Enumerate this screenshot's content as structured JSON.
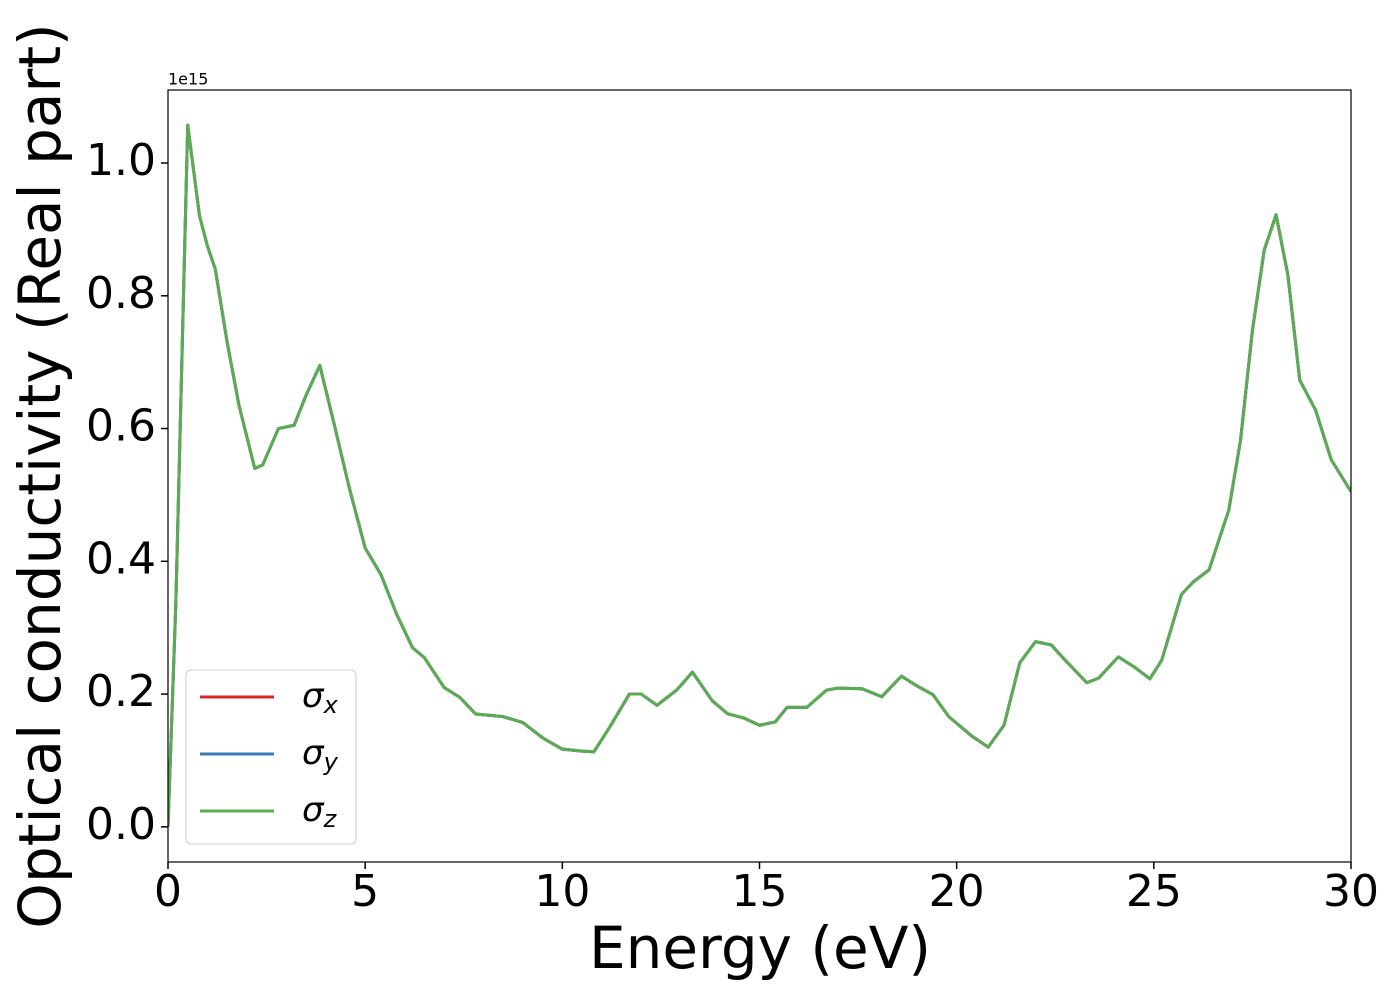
{
  "chart_data": {
    "type": "line",
    "xlabel": "Energy (eV)",
    "ylabel": "Optical conductivity (Real part)",
    "y_offset_text": "1e15",
    "x": [
      0,
      0.2,
      0.5,
      0.8,
      1.0,
      1.2,
      1.5,
      1.8,
      2.2,
      2.4,
      2.8,
      3.2,
      3.5,
      3.85,
      4.2,
      4.6,
      5.0,
      5.4,
      5.8,
      6.2,
      6.5,
      7.0,
      7.4,
      7.8,
      8.5,
      9.0,
      9.5,
      10.0,
      10.5,
      10.8,
      11.2,
      11.7,
      12.0,
      12.4,
      12.9,
      13.3,
      13.8,
      14.2,
      14.6,
      15.0,
      15.4,
      15.7,
      16.2,
      16.7,
      17.0,
      17.6,
      18.1,
      18.6,
      19.0,
      19.4,
      19.8,
      20.4,
      20.8,
      21.2,
      21.6,
      22.0,
      22.4,
      22.8,
      23.3,
      23.6,
      24.1,
      24.5,
      24.9,
      25.2,
      25.7,
      26.0,
      26.4,
      26.9,
      27.2,
      27.5,
      27.8,
      28.1,
      28.4,
      28.7,
      29.1,
      29.5,
      30.0
    ],
    "series": [
      {
        "name": "σx",
        "color": "#d62728",
        "values": [
          0,
          0.34,
          1.057,
          0.92,
          0.875,
          0.84,
          0.73,
          0.635,
          0.54,
          0.545,
          0.6,
          0.605,
          0.65,
          0.695,
          0.61,
          0.51,
          0.42,
          0.38,
          0.32,
          0.27,
          0.255,
          0.21,
          0.195,
          0.17,
          0.166,
          0.157,
          0.134,
          0.117,
          0.114,
          0.113,
          0.15,
          0.2,
          0.2,
          0.183,
          0.206,
          0.233,
          0.19,
          0.17,
          0.164,
          0.153,
          0.158,
          0.18,
          0.18,
          0.206,
          0.209,
          0.208,
          0.196,
          0.227,
          0.212,
          0.199,
          0.166,
          0.136,
          0.12,
          0.153,
          0.247,
          0.279,
          0.274,
          0.248,
          0.217,
          0.224,
          0.256,
          0.241,
          0.223,
          0.251,
          0.35,
          0.369,
          0.387,
          0.477,
          0.583,
          0.748,
          0.869,
          0.922,
          0.831,
          0.673,
          0.628,
          0.553,
          0.505
        ]
      },
      {
        "name": "σy",
        "color": "#3a7bb5",
        "values": [
          0,
          0.34,
          1.057,
          0.92,
          0.875,
          0.84,
          0.73,
          0.635,
          0.54,
          0.545,
          0.6,
          0.605,
          0.65,
          0.695,
          0.61,
          0.51,
          0.42,
          0.38,
          0.32,
          0.27,
          0.255,
          0.21,
          0.195,
          0.17,
          0.166,
          0.157,
          0.134,
          0.117,
          0.114,
          0.113,
          0.15,
          0.2,
          0.2,
          0.183,
          0.206,
          0.233,
          0.19,
          0.17,
          0.164,
          0.153,
          0.158,
          0.18,
          0.18,
          0.206,
          0.209,
          0.208,
          0.196,
          0.227,
          0.212,
          0.199,
          0.166,
          0.136,
          0.12,
          0.153,
          0.247,
          0.279,
          0.274,
          0.248,
          0.217,
          0.224,
          0.256,
          0.241,
          0.223,
          0.251,
          0.35,
          0.369,
          0.387,
          0.477,
          0.583,
          0.748,
          0.869,
          0.922,
          0.831,
          0.673,
          0.628,
          0.553,
          0.505
        ]
      },
      {
        "name": "σz",
        "color": "#5aac52",
        "values": [
          0,
          0.34,
          1.057,
          0.92,
          0.875,
          0.84,
          0.73,
          0.635,
          0.54,
          0.545,
          0.6,
          0.605,
          0.65,
          0.695,
          0.61,
          0.51,
          0.42,
          0.38,
          0.32,
          0.27,
          0.255,
          0.21,
          0.195,
          0.17,
          0.166,
          0.157,
          0.134,
          0.117,
          0.114,
          0.113,
          0.15,
          0.2,
          0.2,
          0.183,
          0.206,
          0.233,
          0.19,
          0.17,
          0.164,
          0.153,
          0.158,
          0.18,
          0.18,
          0.206,
          0.209,
          0.208,
          0.196,
          0.227,
          0.212,
          0.199,
          0.166,
          0.136,
          0.12,
          0.153,
          0.247,
          0.279,
          0.274,
          0.248,
          0.217,
          0.224,
          0.256,
          0.241,
          0.223,
          0.251,
          0.35,
          0.369,
          0.387,
          0.477,
          0.583,
          0.748,
          0.869,
          0.922,
          0.831,
          0.673,
          0.628,
          0.553,
          0.505
        ]
      }
    ],
    "xlim": [
      0,
      30
    ],
    "xticks": [
      0,
      5,
      10,
      15,
      20,
      25,
      30
    ],
    "ylim": [
      -0.053,
      1.11
    ],
    "yticks": [
      {
        "value": 0,
        "label": "0.0"
      },
      0.2,
      0.4,
      0.6,
      0.8,
      {
        "value": 1,
        "label": "1.0"
      }
    ],
    "grid": false,
    "legend": "lower left"
  }
}
